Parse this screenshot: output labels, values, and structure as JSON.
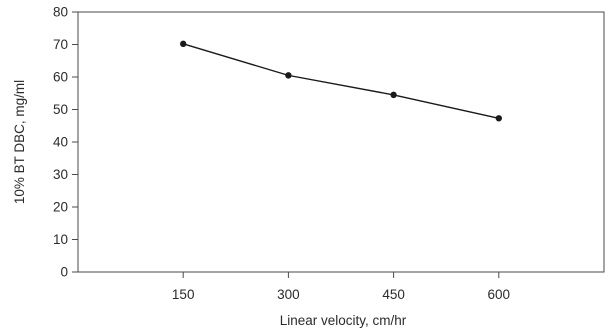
{
  "chart_data": {
    "type": "line",
    "title": "",
    "xlabel": "Linear velocity, cm/hr",
    "ylabel": "10% BT DBC, mg/ml",
    "categories": [
      "150",
      "300",
      "450",
      "600"
    ],
    "x": [
      150,
      300,
      450,
      600
    ],
    "series": [
      {
        "values": [
          70.2,
          60.5,
          54.5,
          47.3
        ],
        "color": "#1a1a1a"
      }
    ],
    "xlim": [
      0,
      750
    ],
    "ylim": [
      0,
      80
    ],
    "yticks": [
      0,
      10,
      20,
      30,
      40,
      50,
      60,
      70,
      80
    ],
    "grid": false,
    "legend": "none"
  }
}
